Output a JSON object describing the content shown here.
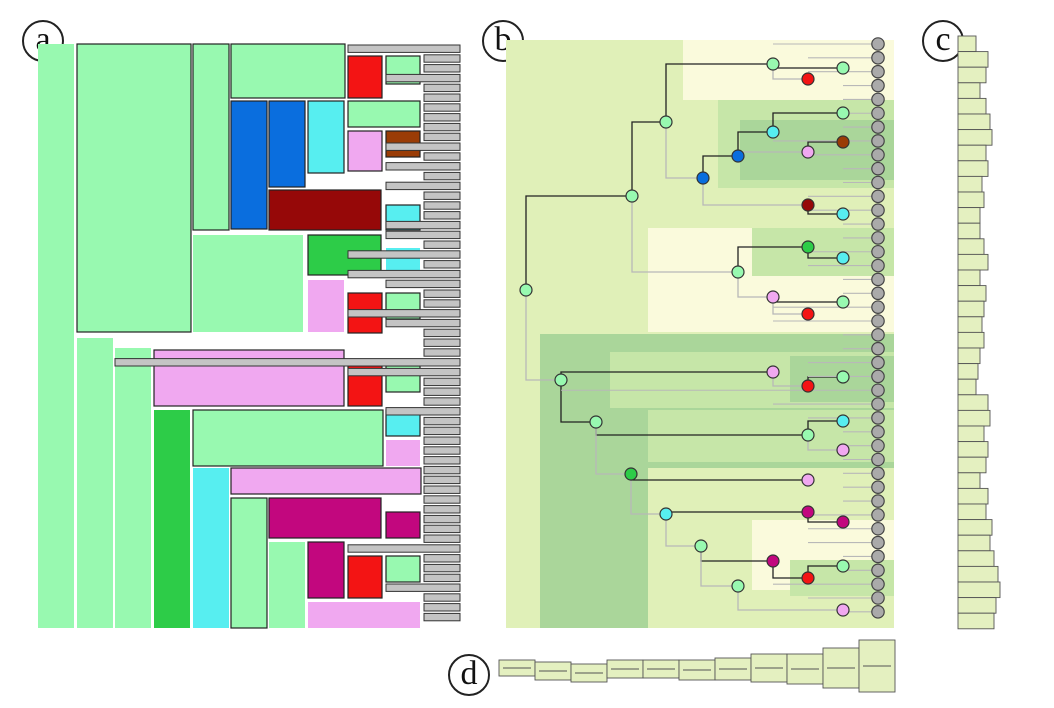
{
  "labels": {
    "a": "a",
    "b": "b",
    "c": "c",
    "d": "d"
  },
  "colors": {
    "mint": "#98f9b0",
    "green": "#2dcc48",
    "cyan": "#57eef0",
    "blue": "#0a6ede",
    "red": "#f31414",
    "darkred": "#960808",
    "brown": "#9a3c06",
    "pink": "#f0a8f0",
    "magenta": "#c2077e",
    "gray": "#c4c4c4",
    "leaf": "#aaaaaa",
    "bg_light": "#e0f0b8",
    "bg_pale": "#fafadc",
    "bg_mid": "#c6e6a8",
    "bg_dark": "#aad69a",
    "bar_fill": "#e4f0c0"
  }
}
